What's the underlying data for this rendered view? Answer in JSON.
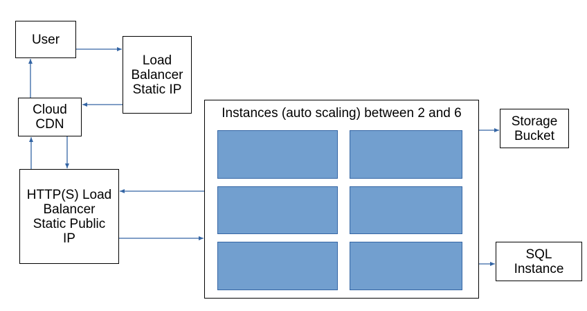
{
  "nodes": {
    "user": "User",
    "load_balancer": "Load\nBalancer\nStatic IP",
    "cloud_cdn": "Cloud\nCDN",
    "https_lb": "HTTP(S) Load\nBalancer\nStatic Public\nIP",
    "storage_bucket": "Storage\nBucket",
    "sql_instance": "SQL\nInstance"
  },
  "instance_group": {
    "title": "Instances (auto scaling) between 2 and 6",
    "instance_count": 6
  },
  "colors": {
    "instance_fill": "#729fcf",
    "instance_border": "#3465a4",
    "connector": "#3465a4"
  }
}
